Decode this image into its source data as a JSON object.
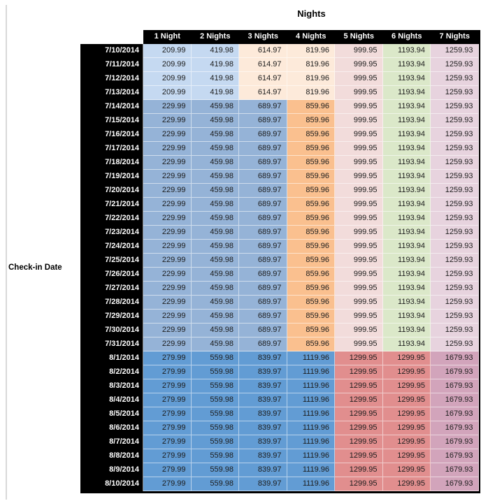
{
  "title": "Nights",
  "left_axis_label": "Check-in Date",
  "chart_data": {
    "type": "table",
    "title": "Nights",
    "row_header_label": "Check-in Date",
    "columns": [
      "1 Night",
      "2 Nights",
      "3 Nights",
      "4 Nights",
      "5 Nights",
      "6 Nights",
      "7 Nights"
    ],
    "rows": [
      {
        "date": "7/10/2014",
        "band": "early_july",
        "values": [
          209.99,
          419.98,
          614.97,
          819.96,
          999.95,
          1193.94,
          1259.93
        ]
      },
      {
        "date": "7/11/2014",
        "band": "early_july",
        "values": [
          209.99,
          419.98,
          614.97,
          819.96,
          999.95,
          1193.94,
          1259.93
        ]
      },
      {
        "date": "7/12/2014",
        "band": "early_july",
        "values": [
          209.99,
          419.98,
          614.97,
          819.96,
          999.95,
          1193.94,
          1259.93
        ]
      },
      {
        "date": "7/13/2014",
        "band": "early_july",
        "values": [
          209.99,
          419.98,
          614.97,
          819.96,
          999.95,
          1193.94,
          1259.93
        ]
      },
      {
        "date": "7/14/2014",
        "band": "mid_july",
        "values": [
          229.99,
          459.98,
          689.97,
          859.96,
          999.95,
          1193.94,
          1259.93
        ]
      },
      {
        "date": "7/15/2014",
        "band": "mid_july",
        "values": [
          229.99,
          459.98,
          689.97,
          859.96,
          999.95,
          1193.94,
          1259.93
        ]
      },
      {
        "date": "7/16/2014",
        "band": "mid_july",
        "values": [
          229.99,
          459.98,
          689.97,
          859.96,
          999.95,
          1193.94,
          1259.93
        ]
      },
      {
        "date": "7/17/2014",
        "band": "mid_july",
        "values": [
          229.99,
          459.98,
          689.97,
          859.96,
          999.95,
          1193.94,
          1259.93
        ]
      },
      {
        "date": "7/18/2014",
        "band": "mid_july",
        "values": [
          229.99,
          459.98,
          689.97,
          859.96,
          999.95,
          1193.94,
          1259.93
        ]
      },
      {
        "date": "7/19/2014",
        "band": "mid_july",
        "values": [
          229.99,
          459.98,
          689.97,
          859.96,
          999.95,
          1193.94,
          1259.93
        ]
      },
      {
        "date": "7/20/2014",
        "band": "mid_july",
        "values": [
          229.99,
          459.98,
          689.97,
          859.96,
          999.95,
          1193.94,
          1259.93
        ]
      },
      {
        "date": "7/21/2014",
        "band": "mid_july",
        "values": [
          229.99,
          459.98,
          689.97,
          859.96,
          999.95,
          1193.94,
          1259.93
        ]
      },
      {
        "date": "7/22/2014",
        "band": "mid_july",
        "values": [
          229.99,
          459.98,
          689.97,
          859.96,
          999.95,
          1193.94,
          1259.93
        ]
      },
      {
        "date": "7/23/2014",
        "band": "mid_july",
        "values": [
          229.99,
          459.98,
          689.97,
          859.96,
          999.95,
          1193.94,
          1259.93
        ]
      },
      {
        "date": "7/24/2014",
        "band": "mid_july",
        "values": [
          229.99,
          459.98,
          689.97,
          859.96,
          999.95,
          1193.94,
          1259.93
        ]
      },
      {
        "date": "7/25/2014",
        "band": "mid_july",
        "values": [
          229.99,
          459.98,
          689.97,
          859.96,
          999.95,
          1193.94,
          1259.93
        ]
      },
      {
        "date": "7/26/2014",
        "band": "mid_july",
        "values": [
          229.99,
          459.98,
          689.97,
          859.96,
          999.95,
          1193.94,
          1259.93
        ]
      },
      {
        "date": "7/27/2014",
        "band": "mid_july",
        "values": [
          229.99,
          459.98,
          689.97,
          859.96,
          999.95,
          1193.94,
          1259.93
        ]
      },
      {
        "date": "7/28/2014",
        "band": "mid_july",
        "values": [
          229.99,
          459.98,
          689.97,
          859.96,
          999.95,
          1193.94,
          1259.93
        ]
      },
      {
        "date": "7/29/2014",
        "band": "mid_july",
        "values": [
          229.99,
          459.98,
          689.97,
          859.96,
          999.95,
          1193.94,
          1259.93
        ]
      },
      {
        "date": "7/30/2014",
        "band": "mid_july",
        "values": [
          229.99,
          459.98,
          689.97,
          859.96,
          999.95,
          1193.94,
          1259.93
        ]
      },
      {
        "date": "7/31/2014",
        "band": "mid_july",
        "values": [
          229.99,
          459.98,
          689.97,
          859.96,
          999.95,
          1193.94,
          1259.93
        ]
      },
      {
        "date": "8/1/2014",
        "band": "august",
        "values": [
          279.99,
          559.98,
          839.97,
          1119.96,
          1299.95,
          1299.95,
          1679.93
        ]
      },
      {
        "date": "8/2/2014",
        "band": "august",
        "values": [
          279.99,
          559.98,
          839.97,
          1119.96,
          1299.95,
          1299.95,
          1679.93
        ]
      },
      {
        "date": "8/3/2014",
        "band": "august",
        "values": [
          279.99,
          559.98,
          839.97,
          1119.96,
          1299.95,
          1299.95,
          1679.93
        ]
      },
      {
        "date": "8/4/2014",
        "band": "august",
        "values": [
          279.99,
          559.98,
          839.97,
          1119.96,
          1299.95,
          1299.95,
          1679.93
        ]
      },
      {
        "date": "8/5/2014",
        "band": "august",
        "values": [
          279.99,
          559.98,
          839.97,
          1119.96,
          1299.95,
          1299.95,
          1679.93
        ]
      },
      {
        "date": "8/6/2014",
        "band": "august",
        "values": [
          279.99,
          559.98,
          839.97,
          1119.96,
          1299.95,
          1299.95,
          1679.93
        ]
      },
      {
        "date": "8/7/2014",
        "band": "august",
        "values": [
          279.99,
          559.98,
          839.97,
          1119.96,
          1299.95,
          1299.95,
          1679.93
        ]
      },
      {
        "date": "8/8/2014",
        "band": "august",
        "values": [
          279.99,
          559.98,
          839.97,
          1119.96,
          1299.95,
          1299.95,
          1679.93
        ]
      },
      {
        "date": "8/9/2014",
        "band": "august",
        "values": [
          279.99,
          559.98,
          839.97,
          1119.96,
          1299.95,
          1299.95,
          1679.93
        ]
      },
      {
        "date": "8/10/2014",
        "band": "august",
        "values": [
          279.99,
          559.98,
          839.97,
          1119.96,
          1299.95,
          1299.95,
          1679.93
        ]
      }
    ],
    "band_colors": {
      "early_july": [
        "#c5d9f1",
        "#c5d9f1",
        "#fdeada",
        "#fdeada",
        "#f2dcdb",
        "#dbe8c9",
        "#e7d3de"
      ],
      "mid_july": [
        "#95b3d7",
        "#95b3d7",
        "#95b3d7",
        "#fac08f",
        "#f2dcdb",
        "#dbe8c9",
        "#e7d3de"
      ],
      "august": [
        "#629cd4",
        "#629cd4",
        "#629cd4",
        "#629cd4",
        "#e18e8e",
        "#e18e8e",
        "#d2a4bb"
      ]
    },
    "header_bg": "#000000",
    "header_text_color": "#ffffff"
  }
}
